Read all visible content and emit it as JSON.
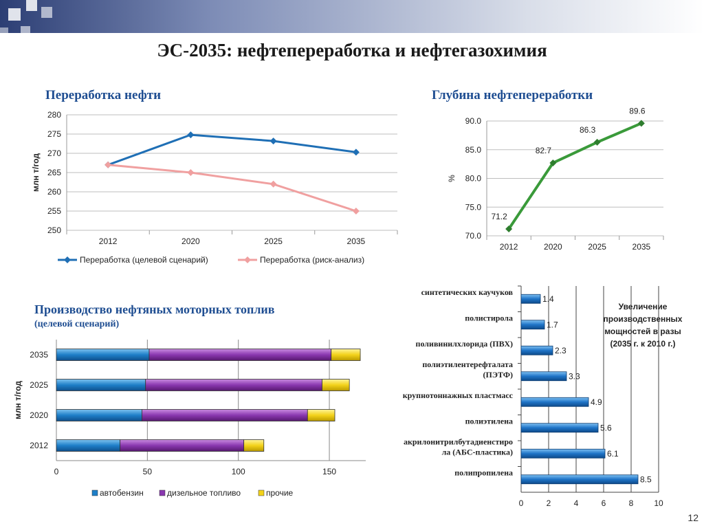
{
  "title": "ЭС-2035: нефтепереработка и нефтегазохимия",
  "page_number": "12",
  "colors": {
    "title_blue": "#1f4e92",
    "target_line": "#1f6fb5",
    "risk_line": "#f0a0a0",
    "depth_line": "#3a9a3a",
    "gasoline": "#1e7fc8",
    "diesel": "#8a38b0",
    "other": "#f3d21a",
    "petchem_bar": "#1f74c7"
  },
  "chart_data": [
    {
      "id": "oil-refining",
      "type": "line",
      "title": "Переработка нефти",
      "ylabel": "млн т/год",
      "categories": [
        "2012",
        "2020",
        "2025",
        "2035"
      ],
      "ylim": [
        250,
        280
      ],
      "yticks": [
        "250",
        "255",
        "260",
        "265",
        "270",
        "275",
        "280"
      ],
      "series": [
        {
          "name": "Переработка (целевой сценарий)",
          "values": [
            267,
            274.8,
            273.2,
            270.3
          ]
        },
        {
          "name": "Переработка (риск-анализ)",
          "values": [
            267,
            265,
            262,
            255
          ]
        }
      ],
      "legend": "bottom"
    },
    {
      "id": "refining-depth",
      "type": "line",
      "title": "Глубина нефтепереработки",
      "ylabel": "%",
      "categories": [
        "2012",
        "2020",
        "2025",
        "2035"
      ],
      "ylim": [
        70,
        90
      ],
      "yticks": [
        "70.0",
        "75.0",
        "80.0",
        "85.0",
        "90.0"
      ],
      "values": [
        71.2,
        82.7,
        86.3,
        89.6
      ],
      "labels": [
        "71.2",
        "82.7",
        "86.3",
        "89.6"
      ]
    },
    {
      "id": "motor-fuels",
      "type": "bar",
      "title": "Производство нефтяных моторных топлив",
      "subtitle": "(целевой сценарий)",
      "ylabel": "млн т/год",
      "categories": [
        "2012",
        "2020",
        "2025",
        "2035"
      ],
      "xlim": [
        0,
        170
      ],
      "xticks": [
        "0",
        "50",
        "100",
        "150"
      ],
      "stacked": true,
      "series": [
        {
          "name": "автобензин",
          "values": [
            35,
            47,
            49,
            51
          ]
        },
        {
          "name": "дизельное топливо",
          "values": [
            68,
            91,
            97,
            100
          ]
        },
        {
          "name": "прочие",
          "values": [
            11,
            15,
            15,
            16
          ]
        }
      ],
      "legend": "bottom"
    },
    {
      "id": "petchem-growth",
      "type": "bar",
      "orientation": "horizontal",
      "categories": [
        [
          "синтетических каучуков"
        ],
        [
          "полистирола"
        ],
        [
          "поливинилхлорида (ПВХ)"
        ],
        [
          "полиэтилентерефталата",
          "(ПЭТФ)"
        ],
        [
          "крупнотоннажных пластмасс"
        ],
        [
          "полиэтилена"
        ],
        [
          "акрилонитрилбутадиенстиро",
          "ла (АБС-пластика)"
        ],
        [
          "полипропилена"
        ]
      ],
      "values": [
        1.4,
        1.7,
        2.3,
        3.3,
        4.9,
        5.6,
        6.1,
        8.5
      ],
      "labels": [
        "1.4",
        "1.7",
        "2.3",
        "3.3",
        "4.9",
        "5.6",
        "6.1",
        "8.5"
      ],
      "xlim": [
        0,
        10
      ],
      "xticks": [
        "0",
        "2",
        "4",
        "6",
        "8",
        "10"
      ],
      "note": [
        "Увеличение",
        "производственных",
        "мощностей в разы",
        "(2035 г. к 2010 г.)"
      ]
    }
  ]
}
